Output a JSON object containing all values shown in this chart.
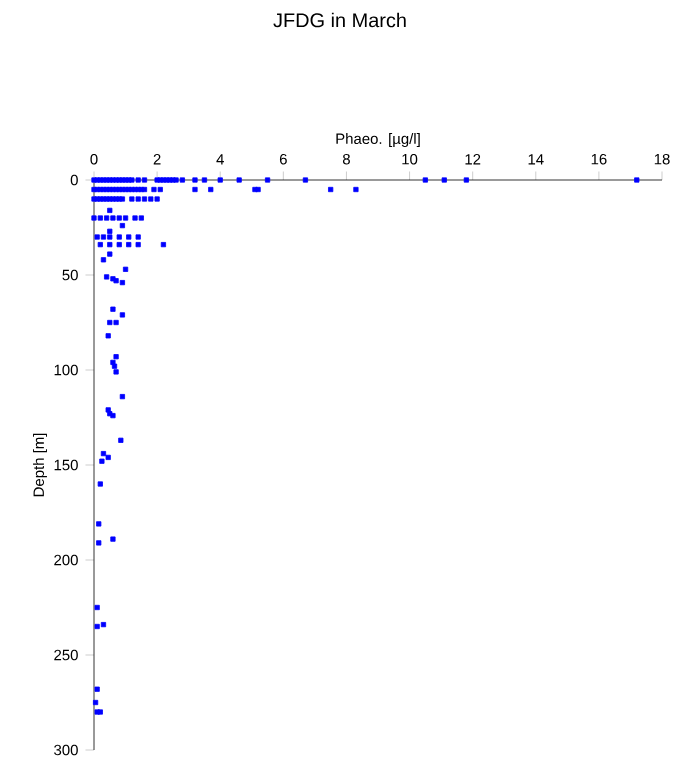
{
  "chart_data": {
    "type": "scatter",
    "title": "JFDG in March",
    "xlabel": "Phaeo. [µg/l]",
    "ylabel": "Depth [m]",
    "x": [
      0,
      0.1,
      0.2,
      0.3,
      0.4,
      0.5,
      0.6,
      0.7,
      0.8,
      0.9,
      1.0,
      1.1,
      1.2,
      1.4,
      1.6,
      2.0,
      2.1,
      2.2,
      2.3,
      2.4,
      2.5,
      2.6,
      2.8,
      3.2,
      3.5,
      4.0,
      4.6,
      5.5,
      6.7,
      10.5,
      11.1,
      11.8,
      17.2,
      0,
      0.1,
      0.2,
      0.3,
      0.4,
      0.5,
      0.6,
      0.7,
      0.8,
      0.9,
      1.0,
      1.1,
      1.2,
      1.3,
      1.4,
      1.5,
      1.6,
      1.9,
      2.1,
      3.2,
      3.7,
      5.1,
      5.2,
      7.5,
      8.3,
      0,
      0.1,
      0.2,
      0.3,
      0.4,
      0.5,
      0.6,
      0.7,
      0.8,
      0.9,
      1.2,
      1.4,
      1.6,
      1.8,
      2.0,
      0.5,
      0,
      0.2,
      0.4,
      0.6,
      0.8,
      1.0,
      1.3,
      1.5,
      0.9,
      0.5,
      0.1,
      0.3,
      0.5,
      0.8,
      1.1,
      1.4,
      0.2,
      0.5,
      0.8,
      1.1,
      1.4,
      2.2,
      0.5,
      0.3,
      1.0,
      0.4,
      0.6,
      0.9,
      0.7,
      0.6,
      0.9,
      0.5,
      0.7,
      0.45,
      0.7,
      0.6,
      0.65,
      0.7,
      0.9,
      0.45,
      0.5,
      0.6,
      0.85,
      0.3,
      0.45,
      0.25,
      0.2,
      0.15,
      0.15,
      0.6,
      0.1,
      0.1,
      0.3,
      0.1,
      0.05,
      0.1,
      0.2
    ],
    "values": [
      0,
      0,
      0,
      0,
      0,
      0,
      0,
      0,
      0,
      0,
      0,
      0,
      0,
      0,
      0,
      0,
      0,
      0,
      0,
      0,
      0,
      0,
      0,
      0,
      0,
      0,
      0,
      0,
      0,
      0,
      0,
      0,
      0,
      5,
      5,
      5,
      5,
      5,
      5,
      5,
      5,
      5,
      5,
      5,
      5,
      5,
      5,
      5,
      5,
      5,
      5,
      5,
      5,
      5,
      5,
      5,
      5,
      5,
      10,
      10,
      10,
      10,
      10,
      10,
      10,
      10,
      10,
      10,
      10,
      10,
      10,
      10,
      10,
      16,
      20,
      20,
      20,
      20,
      20,
      20,
      20,
      20,
      24,
      27,
      30,
      30,
      30,
      30,
      30,
      30,
      34,
      34,
      34,
      34,
      34,
      34,
      39,
      42,
      47,
      51,
      52,
      54,
      53,
      68,
      71,
      75,
      75,
      82,
      93,
      96,
      98,
      101,
      114,
      121,
      123,
      124,
      137,
      144,
      146,
      148,
      160,
      181,
      191,
      189,
      225,
      235,
      234,
      268,
      275,
      280,
      280
    ],
    "color": "#0000ff",
    "marker": "square",
    "xlim": [
      0,
      18
    ],
    "xticks": [
      0,
      2,
      4,
      6,
      8,
      10,
      12,
      14,
      16,
      18
    ],
    "ylim": [
      300,
      0
    ],
    "yticks": [
      0,
      50,
      100,
      150,
      200,
      250,
      300
    ]
  }
}
